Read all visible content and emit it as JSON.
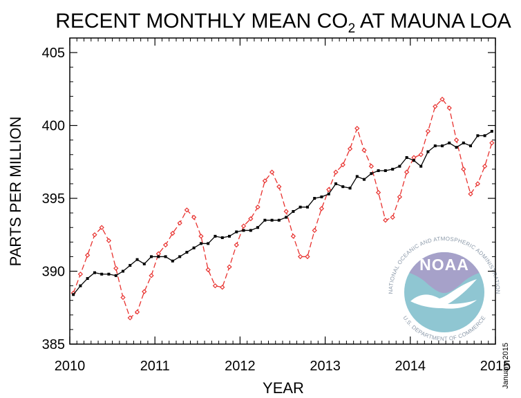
{
  "chart_data": {
    "type": "line",
    "title": "RECENT MONTHLY MEAN CO",
    "title_subscript": "2",
    "title_suffix": " AT MAUNA LOA",
    "xlabel": "YEAR",
    "ylabel": "PARTS PER MILLION",
    "xlim": [
      2010,
      2015
    ],
    "ylim": [
      385,
      406
    ],
    "x_ticks": [
      2010,
      2011,
      2012,
      2013,
      2014,
      2015
    ],
    "y_ticks": [
      385,
      390,
      395,
      400,
      405
    ],
    "annotation": "January 2015",
    "grid": false,
    "series": [
      {
        "color": "#e8312e",
        "style": "dashed-diamond",
        "x": [
          2010.042,
          2010.125,
          2010.208,
          2010.292,
          2010.375,
          2010.458,
          2010.542,
          2010.625,
          2010.708,
          2010.792,
          2010.875,
          2010.958,
          2011.042,
          2011.125,
          2011.208,
          2011.292,
          2011.375,
          2011.458,
          2011.542,
          2011.625,
          2011.708,
          2011.792,
          2011.875,
          2011.958,
          2012.042,
          2012.125,
          2012.208,
          2012.292,
          2012.375,
          2012.458,
          2012.542,
          2012.625,
          2012.708,
          2012.792,
          2012.875,
          2012.958,
          2013.042,
          2013.125,
          2013.208,
          2013.292,
          2013.375,
          2013.458,
          2013.542,
          2013.625,
          2013.708,
          2013.792,
          2013.875,
          2013.958,
          2014.042,
          2014.125,
          2014.208,
          2014.292,
          2014.375,
          2014.458,
          2014.542,
          2014.625,
          2014.708,
          2014.792,
          2014.875,
          2014.958
        ],
        "values": [
          388.5,
          389.8,
          391.1,
          392.5,
          393.0,
          392.1,
          390.2,
          388.2,
          386.8,
          387.2,
          388.6,
          389.7,
          391.2,
          391.8,
          392.6,
          393.3,
          394.2,
          393.7,
          392.4,
          390.1,
          389.0,
          388.9,
          390.3,
          391.8,
          393.1,
          393.6,
          394.4,
          396.2,
          396.8,
          395.8,
          394.1,
          392.4,
          391.0,
          391.0,
          392.8,
          394.3,
          395.6,
          396.8,
          397.3,
          398.4,
          399.8,
          398.3,
          397.2,
          395.4,
          393.5,
          393.7,
          395.1,
          396.8,
          397.8,
          398.0,
          399.6,
          401.3,
          401.8,
          401.2,
          399.0,
          397.0,
          395.3,
          396.0,
          397.2,
          398.8
        ]
      },
      {
        "color": "#000000",
        "style": "solid-square",
        "x": [
          2010.042,
          2010.125,
          2010.208,
          2010.292,
          2010.375,
          2010.458,
          2010.542,
          2010.625,
          2010.708,
          2010.792,
          2010.875,
          2010.958,
          2011.042,
          2011.125,
          2011.208,
          2011.292,
          2011.375,
          2011.458,
          2011.542,
          2011.625,
          2011.708,
          2011.792,
          2011.875,
          2011.958,
          2012.042,
          2012.125,
          2012.208,
          2012.292,
          2012.375,
          2012.458,
          2012.542,
          2012.625,
          2012.708,
          2012.792,
          2012.875,
          2012.958,
          2013.042,
          2013.125,
          2013.208,
          2013.292,
          2013.375,
          2013.458,
          2013.542,
          2013.625,
          2013.708,
          2013.792,
          2013.875,
          2013.958,
          2014.042,
          2014.125,
          2014.208,
          2014.292,
          2014.375,
          2014.458,
          2014.542,
          2014.625,
          2014.708,
          2014.792,
          2014.875,
          2014.958
        ],
        "values": [
          388.4,
          389.0,
          389.5,
          389.9,
          389.8,
          389.8,
          389.7,
          390.0,
          390.4,
          390.8,
          390.5,
          391.0,
          391.0,
          391.0,
          390.7,
          391.0,
          391.3,
          391.6,
          391.9,
          391.9,
          392.4,
          392.3,
          392.4,
          392.7,
          392.8,
          392.8,
          393.0,
          393.5,
          393.5,
          393.5,
          393.7,
          394.1,
          394.4,
          394.4,
          395.0,
          395.1,
          395.3,
          396.0,
          395.8,
          395.7,
          396.5,
          396.3,
          396.7,
          396.9,
          396.9,
          397.0,
          397.2,
          397.8,
          397.6,
          397.2,
          398.2,
          398.6,
          398.6,
          398.8,
          398.5,
          398.8,
          398.6,
          399.3,
          399.3,
          399.6
        ]
      }
    ]
  },
  "logo": {
    "wordmark": "NOAA",
    "upper_arc": "NATIONAL OCEANIC AND ATMOSPHERIC ADMINISTRATION",
    "lower_arc": "U.S. DEPARTMENT OF COMMERCE"
  }
}
